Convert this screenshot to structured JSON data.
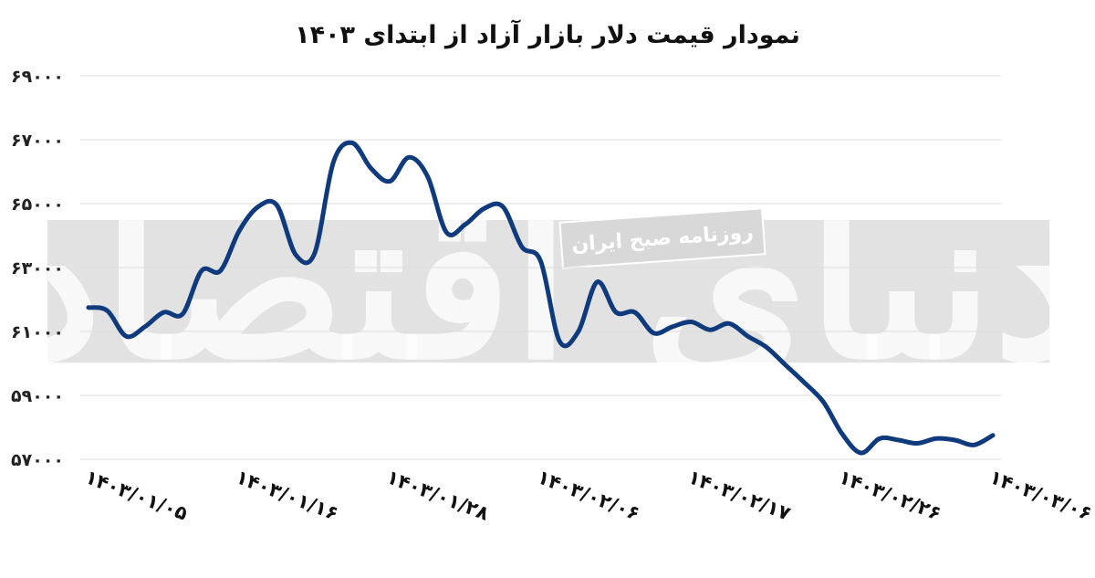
{
  "chart_data": {
    "type": "line",
    "title": "نمودار قیمت دلار بازار آزاد از ابتدای ۱۴۰۳",
    "xlabel": "",
    "ylabel": "",
    "ylim": [
      57000,
      69000
    ],
    "yticks": [
      "۵۷۰۰۰",
      "۵۹۰۰۰",
      "۶۱۰۰۰",
      "۶۳۰۰۰",
      "۶۵۰۰۰",
      "۶۷۰۰۰",
      "۶۹۰۰۰"
    ],
    "ytick_values": [
      57000,
      59000,
      61000,
      63000,
      65000,
      67000,
      69000
    ],
    "xticks": [
      "۱۴۰۳/۰۱/۰۵",
      "۱۴۰۳/۰۱/۱۶",
      "۱۴۰۳/۰۱/۲۸",
      "۱۴۰۳/۰۲/۰۶",
      "۱۴۰۳/۰۲/۱۷",
      "۱۴۰۳/۰۲/۲۶",
      "۱۴۰۳/۰۳/۰۶"
    ],
    "xtick_index": [
      0,
      8,
      16,
      24,
      32,
      40,
      48
    ],
    "grid": true,
    "series": [
      {
        "color": "#0f3a7d",
        "values": [
          61750,
          61650,
          60850,
          61150,
          61600,
          61550,
          62900,
          62900,
          64150,
          64900,
          64950,
          63400,
          63450,
          66300,
          66900,
          66100,
          65700,
          66450,
          65850,
          64100,
          64350,
          64850,
          64900,
          63650,
          63200,
          60700,
          61000,
          62550,
          61600,
          61600,
          60950,
          61150,
          61300,
          61050,
          61250,
          60850,
          60500,
          59950,
          59400,
          58800,
          57800,
          57200,
          57650,
          57600,
          57500,
          57650,
          57600,
          57450,
          57750
        ]
      }
    ]
  },
  "watermark": {
    "banner_text": "روزنامه صبح ایران",
    "logo_text": "دنیای اقتصاد"
  },
  "colors": {
    "line": "#0f3a7d",
    "grid": "#dddddd",
    "band": "#e2e2e2"
  }
}
